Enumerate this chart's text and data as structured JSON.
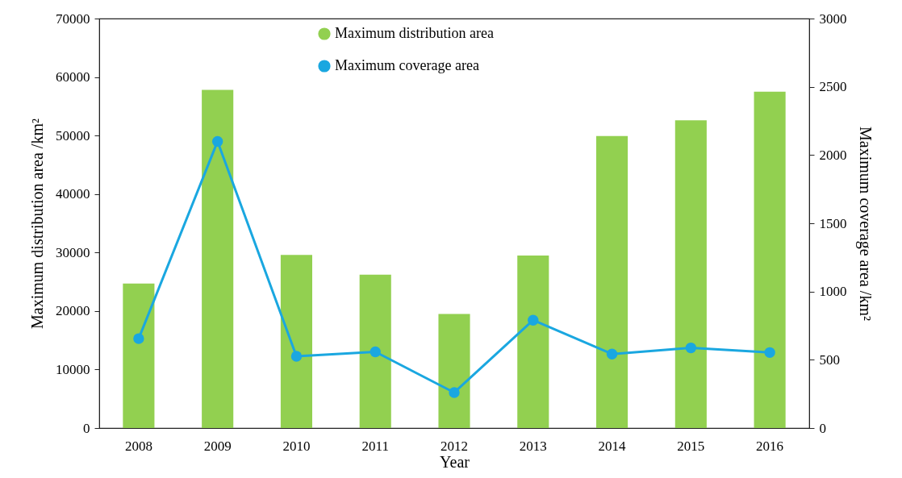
{
  "chart_data": {
    "type": "bar",
    "xlabel": "Year",
    "ylabel": "Maximum distribution area /km²",
    "y2label": "Maximum coverage area /km²",
    "categories": [
      "2008",
      "2009",
      "2010",
      "2011",
      "2012",
      "2013",
      "2014",
      "2015",
      "2016"
    ],
    "series": [
      {
        "name": "Maximum distribution area",
        "color": "#92d050",
        "values": [
          24700,
          57800,
          29600,
          26200,
          19500,
          29500,
          49900,
          52600,
          57500
        ]
      },
      {
        "name": "Maximum coverage area",
        "type": "line",
        "axis": "y2",
        "color": "#1aa7e0",
        "values": [
          655,
          2100,
          526,
          558,
          260,
          790,
          542,
          587,
          553
        ]
      }
    ],
    "ylim": [
      0,
      70000
    ],
    "yticks": [
      0,
      10000,
      20000,
      30000,
      40000,
      50000,
      60000,
      70000
    ],
    "y2lim": [
      0,
      3000
    ],
    "y2ticks": [
      0,
      500,
      1000,
      1500,
      2000,
      2500,
      3000
    ],
    "legend": "top",
    "marker": "circle",
    "grid": false
  }
}
